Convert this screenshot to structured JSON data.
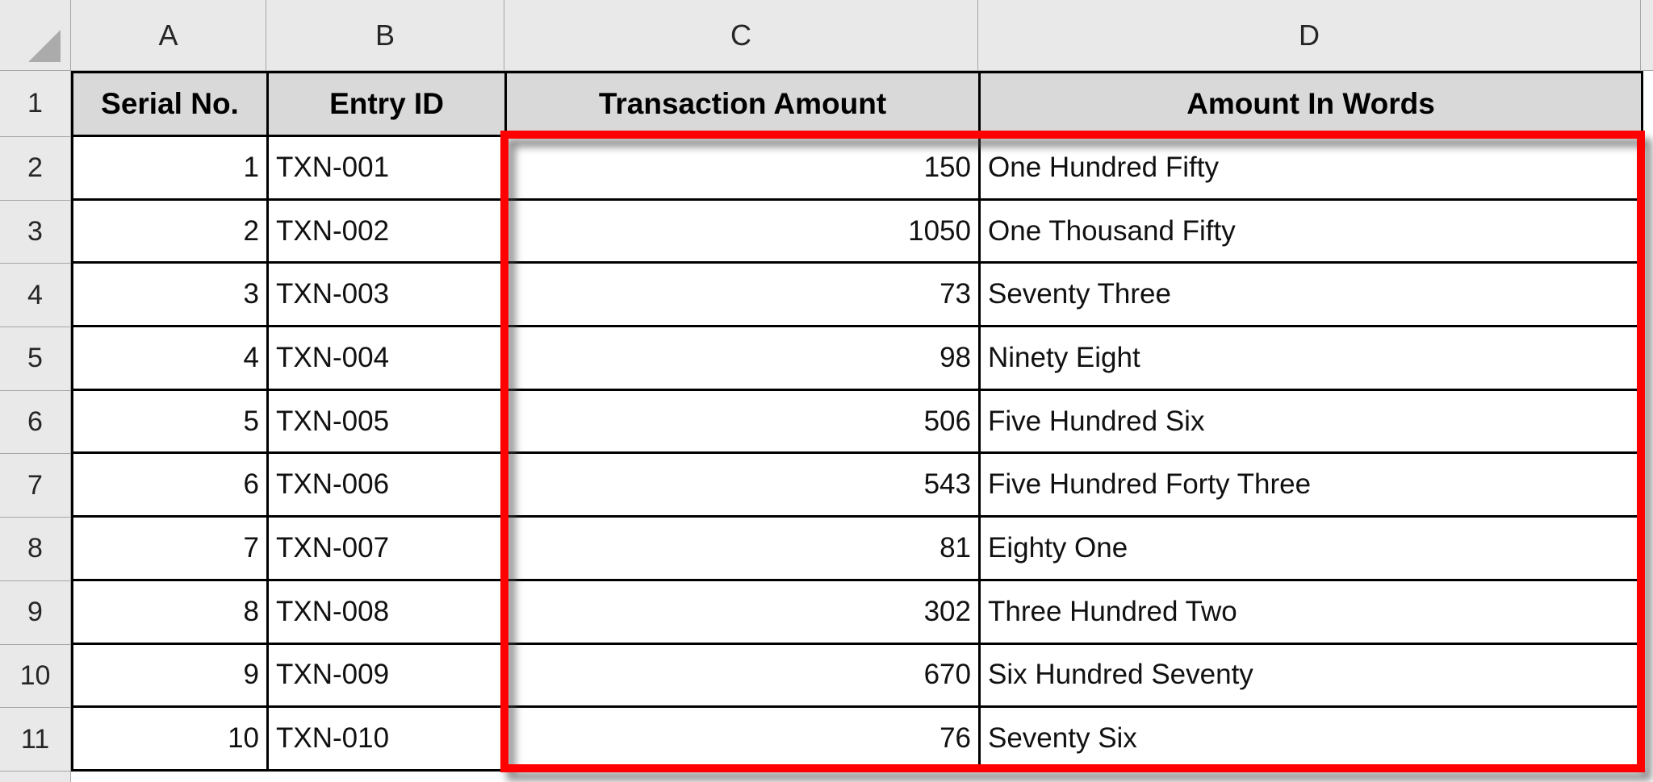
{
  "app": {
    "description": "Excel worksheet showing transaction amounts converted to words"
  },
  "column_headers": [
    "A",
    "B",
    "C",
    "D"
  ],
  "row_headers": [
    "1",
    "2",
    "3",
    "4",
    "5",
    "6",
    "7",
    "8",
    "9",
    "10",
    "11"
  ],
  "table": {
    "headers": [
      "Serial No.",
      "Entry ID",
      "Transaction Amount",
      "Amount In Words"
    ],
    "rows": [
      {
        "serial": "1",
        "entry_id": "TXN-001",
        "amount": "150",
        "words": "One Hundred Fifty"
      },
      {
        "serial": "2",
        "entry_id": "TXN-002",
        "amount": "1050",
        "words": "One Thousand Fifty"
      },
      {
        "serial": "3",
        "entry_id": "TXN-003",
        "amount": "73",
        "words": "Seventy Three"
      },
      {
        "serial": "4",
        "entry_id": "TXN-004",
        "amount": "98",
        "words": "Ninety Eight"
      },
      {
        "serial": "5",
        "entry_id": "TXN-005",
        "amount": "506",
        "words": "Five Hundred Six"
      },
      {
        "serial": "6",
        "entry_id": "TXN-006",
        "amount": "543",
        "words": "Five Hundred Forty Three"
      },
      {
        "serial": "7",
        "entry_id": "TXN-007",
        "amount": "81",
        "words": "Eighty One"
      },
      {
        "serial": "8",
        "entry_id": "TXN-008",
        "amount": "302",
        "words": "Three Hundred Two"
      },
      {
        "serial": "9",
        "entry_id": "TXN-009",
        "amount": "670",
        "words": "Six Hundred Seventy"
      },
      {
        "serial": "10",
        "entry_id": "TXN-010",
        "amount": "76",
        "words": "Seventy Six"
      }
    ]
  },
  "annotation": {
    "type": "highlight-rectangle",
    "range": "C2:D11",
    "color": "#FF0000"
  },
  "colors": {
    "frame_fill": "#E9E9E9",
    "header_fill": "#D9D9D9",
    "grid_line": "#000000",
    "frame_line": "#A6A6A6",
    "highlight": "#FF0000"
  }
}
